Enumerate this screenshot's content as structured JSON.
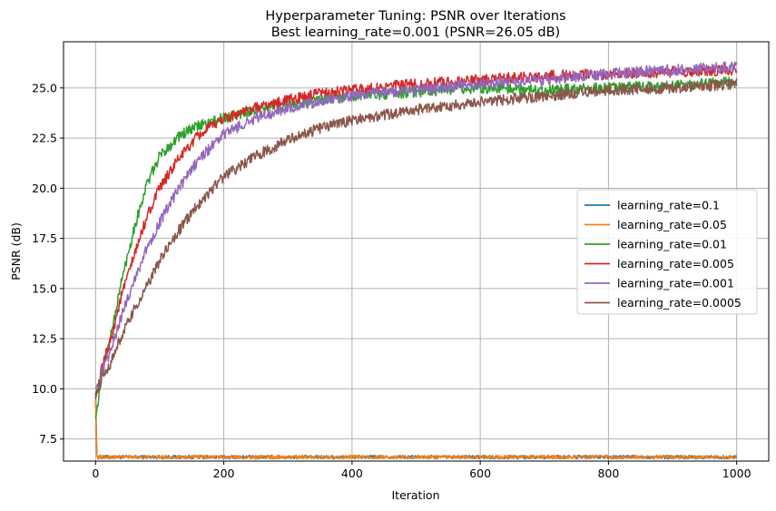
{
  "chart_data": {
    "type": "line",
    "title_line1": "Hyperparameter Tuning: PSNR over Iterations",
    "title_line2": "Best learning_rate=0.001 (PSNR=26.05 dB)",
    "xlabel": "Iteration",
    "ylabel": "PSNR (dB)",
    "xlim": [
      -50,
      1050
    ],
    "ylim": [
      6.4,
      27.3
    ],
    "xticks": [
      0,
      200,
      400,
      600,
      800,
      1000
    ],
    "xtick_labels": [
      "0",
      "200",
      "400",
      "600",
      "800",
      "1000"
    ],
    "yticks": [
      7.5,
      10.0,
      12.5,
      15.0,
      17.5,
      20.0,
      22.5,
      25.0
    ],
    "ytick_labels": [
      "7.5",
      "10.0",
      "12.5",
      "15.0",
      "17.5",
      "20.0",
      "22.5",
      "25.0"
    ],
    "grid": true,
    "legend_position": "center-right",
    "series": [
      {
        "name": "learning_rate=0.1",
        "color": "#1f77b4",
        "x": [
          0,
          1,
          2,
          3,
          50,
          200,
          400,
          600,
          800,
          1000
        ],
        "y": [
          9.8,
          8.2,
          6.7,
          6.6,
          6.6,
          6.6,
          6.6,
          6.6,
          6.6,
          6.6
        ]
      },
      {
        "name": "learning_rate=0.05",
        "color": "#ff7f0e",
        "x": [
          0,
          1,
          2,
          3,
          50,
          200,
          400,
          600,
          800,
          1000
        ],
        "y": [
          9.5,
          7.8,
          6.7,
          6.6,
          6.6,
          6.6,
          6.6,
          6.6,
          6.6,
          6.6
        ]
      },
      {
        "name": "learning_rate=0.01",
        "color": "#2ca02c",
        "x": [
          0,
          10,
          25,
          40,
          60,
          80,
          100,
          130,
          160,
          200,
          250,
          300,
          350,
          400,
          500,
          600,
          700,
          800,
          900,
          1000
        ],
        "y": [
          8.5,
          10.8,
          12.8,
          15.3,
          18.0,
          20.2,
          21.6,
          22.6,
          23.1,
          23.5,
          23.9,
          24.2,
          24.4,
          24.6,
          24.8,
          25.0,
          24.9,
          25.0,
          25.1,
          25.3
        ]
      },
      {
        "name": "learning_rate=0.005",
        "color": "#d62728",
        "x": [
          0,
          10,
          25,
          40,
          60,
          80,
          100,
          130,
          160,
          200,
          250,
          300,
          350,
          400,
          500,
          600,
          700,
          800,
          900,
          1000
        ],
        "y": [
          9.5,
          11.0,
          12.6,
          14.6,
          16.6,
          18.6,
          20.0,
          21.5,
          22.6,
          23.5,
          24.0,
          24.4,
          24.7,
          24.9,
          25.2,
          25.4,
          25.6,
          25.7,
          25.8,
          25.9
        ]
      },
      {
        "name": "learning_rate=0.001",
        "color": "#9467bd",
        "x": [
          0,
          10,
          25,
          40,
          60,
          80,
          100,
          130,
          160,
          200,
          250,
          300,
          350,
          400,
          500,
          600,
          700,
          800,
          900,
          1000
        ],
        "y": [
          10.0,
          10.8,
          12.0,
          13.6,
          15.4,
          17.0,
          18.3,
          20.0,
          21.4,
          22.7,
          23.5,
          24.0,
          24.3,
          24.6,
          24.9,
          25.2,
          25.4,
          25.7,
          25.9,
          26.05
        ]
      },
      {
        "name": "learning_rate=0.0005",
        "color": "#8c564b",
        "x": [
          0,
          10,
          25,
          40,
          60,
          80,
          100,
          130,
          160,
          200,
          250,
          300,
          350,
          400,
          500,
          600,
          700,
          800,
          900,
          1000
        ],
        "y": [
          9.8,
          10.5,
          11.4,
          12.6,
          13.9,
          15.1,
          16.4,
          17.9,
          19.2,
          20.6,
          21.6,
          22.4,
          23.0,
          23.4,
          23.9,
          24.3,
          24.6,
          24.9,
          25.0,
          25.2
        ]
      }
    ]
  }
}
